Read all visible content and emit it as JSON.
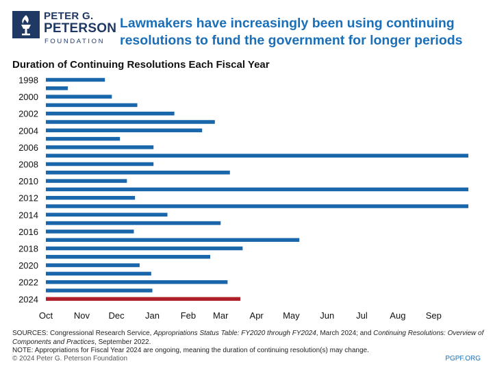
{
  "header": {
    "logo": {
      "line1": "PETER G.",
      "line2": "PETERSON",
      "line3": "FOUNDATION",
      "color": "#1f3864"
    },
    "headline_line1": "Lawmakers have increasingly been using continuing",
    "headline_line2": "resolutions to fund the government for longer periods",
    "headline_color": "#1a6fb8"
  },
  "chart_data": {
    "type": "bar",
    "orientation": "horizontal",
    "title": "Duration of Continuing Resolutions Each Fiscal Year",
    "categories": [
      "1998",
      "1999",
      "2000",
      "2001",
      "2002",
      "2003",
      "2004",
      "2005",
      "2006",
      "2007",
      "2008",
      "2009",
      "2010",
      "2011",
      "2012",
      "2013",
      "2014",
      "2015",
      "2016",
      "2017",
      "2018",
      "2019",
      "2020",
      "2021",
      "2022",
      "2023",
      "2024"
    ],
    "category_tick_labels": [
      "1998",
      "2000",
      "2002",
      "2004",
      "2006",
      "2008",
      "2010",
      "2012",
      "2014",
      "2016",
      "2018",
      "2020",
      "2022",
      "2024"
    ],
    "values_days": [
      51,
      19,
      57,
      79,
      111,
      146,
      135,
      64,
      93,
      365,
      93,
      159,
      70,
      365,
      77,
      365,
      105,
      151,
      76,
      219,
      170,
      142,
      81,
      91,
      157,
      92,
      168
    ],
    "x_tick_labels": [
      "Oct",
      "Nov",
      "Dec",
      "Jan",
      "Feb",
      "Mar",
      "Apr",
      "May",
      "Jun",
      "Jul",
      "Aug",
      "Sep"
    ],
    "x_month_start_days": [
      0,
      31,
      61,
      92,
      123,
      151,
      182,
      212,
      243,
      273,
      304,
      335
    ],
    "xlim_days": [
      0,
      365
    ],
    "bar_color": "#1a66aa",
    "highlight_category": "2024",
    "highlight_color": "#b0202a",
    "grid": false
  },
  "footer": {
    "sources_prefix": "SOURCES: Congressional Research Service, ",
    "sources_title1": "Appropriations Status Table: FY2020 through FY2024",
    "sources_mid": ", March 2024; and ",
    "sources_title2": "Continuing Resolutions: Overview of Components and Practices",
    "sources_suffix": ", September 2022.",
    "note": "NOTE: Appropriations for Fiscal Year 2024 are ongoing, meaning the duration of continuing resolution(s) may change.",
    "copyright": "© 2024 Peter G. Peterson Foundation",
    "site": "PGPF.ORG"
  }
}
